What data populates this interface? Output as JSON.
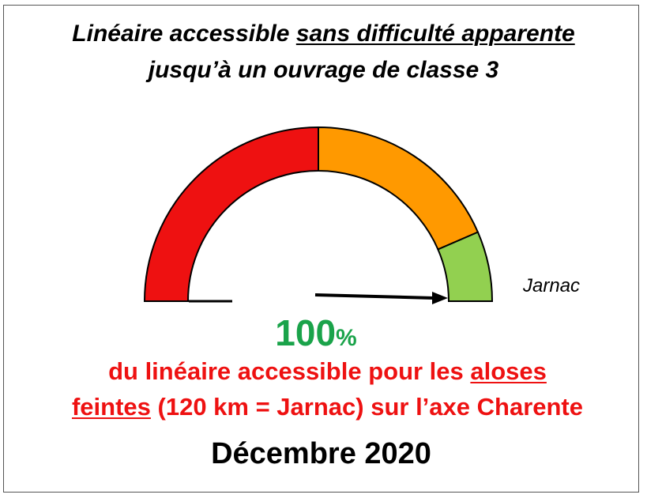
{
  "title": {
    "line1_pre": "Linéaire accessible ",
    "line1_underlined": "sans difficulté apparente",
    "line2": "jusqu’à un ouvrage de classe 3"
  },
  "chart_data": {
    "type": "gauge",
    "range": [
      0,
      100
    ],
    "value": 100,
    "segments": [
      {
        "from": 0,
        "to": 50,
        "color": "#ee1111"
      },
      {
        "from": 50,
        "to": 87,
        "color": "#ff9900"
      },
      {
        "from": 87,
        "to": 100,
        "color": "#92d050"
      }
    ],
    "marker_label": "Jarnac",
    "value_number": "100",
    "value_unit": "%"
  },
  "description": {
    "line1_pre": "du linéaire accessible pour les ",
    "line1_underlined": "aloses",
    "line2_underlined": "feintes",
    "line2_post": " (120 km = Jarnac) sur l’axe Charente"
  },
  "date": "Décembre 2020",
  "colors": {
    "value_green": "#1aa34a",
    "description_red": "#ee1111"
  }
}
